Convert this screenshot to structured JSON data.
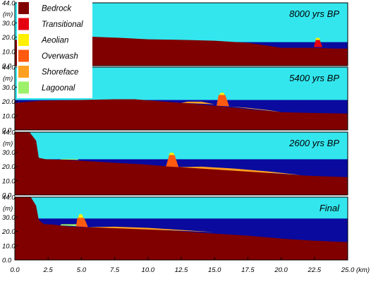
{
  "chart_data": {
    "type": "area",
    "colors": {
      "sky": "#33E6EE",
      "sea": "#0A0A9E",
      "Bedrock": "#800000",
      "Transitional": "#E40010",
      "Aeolian": "#FFF000",
      "Overwash": "#FF5A10",
      "Shoreface": "#FFA020",
      "Lagoonal": "#9CF06A"
    },
    "legend": {
      "position": "top-left",
      "items": [
        "Bedrock",
        "Transitional",
        "Aeolian",
        "Overwash",
        "Shoreface",
        "Lagoonal"
      ]
    },
    "x_axis": {
      "unit": "(km)",
      "range": [
        0,
        25
      ],
      "ticks": [
        "0.0",
        "2.5",
        "5.0",
        "7.5",
        "10.0",
        "12.5",
        "15.0",
        "17.5",
        "20.0",
        "22.5",
        "25.0"
      ]
    },
    "y_axis": {
      "unit": "(m)",
      "range": [
        0,
        44
      ],
      "ticks": [
        "0.0",
        "10.0",
        "20.0",
        "30.0",
        "44.0"
      ]
    },
    "panels": [
      {
        "label": "8000 yrs BP",
        "sea_level": 16.5,
        "bedrock": [
          [
            0,
            18
          ],
          [
            1.5,
            19.5
          ],
          [
            2,
            21
          ],
          [
            5,
            20.5
          ],
          [
            8,
            19.5
          ],
          [
            10,
            18.5
          ],
          [
            13,
            18
          ],
          [
            15,
            17.5
          ],
          [
            17.5,
            16
          ],
          [
            19,
            14
          ],
          [
            20,
            12.5
          ],
          [
            22.5,
            12.5
          ],
          [
            24,
            12
          ],
          [
            25,
            12
          ]
        ],
        "deposits": [
          {
            "type": "Transitional",
            "profile": [
              [
                22.45,
                13
              ],
              [
                22.6,
                18
              ],
              [
                22.9,
                18
              ],
              [
                23.1,
                13
              ]
            ]
          },
          {
            "type": "Aeolian",
            "profile": [
              [
                22.55,
                18
              ],
              [
                22.65,
                19.5
              ],
              [
                22.85,
                19.5
              ],
              [
                22.95,
                18
              ]
            ]
          }
        ]
      },
      {
        "label": "5400 yrs BP",
        "sea_level": 21,
        "bedrock": [
          [
            0,
            19
          ],
          [
            2,
            20.5
          ],
          [
            5,
            21
          ],
          [
            7.5,
            21.5
          ],
          [
            9,
            21.5
          ],
          [
            11,
            20
          ],
          [
            13.2,
            18.5
          ],
          [
            15.5,
            16.5
          ],
          [
            18,
            14
          ],
          [
            20,
            12.5
          ],
          [
            22,
            12
          ],
          [
            25,
            11.5
          ]
        ],
        "deposits": [
          {
            "type": "Shoreface",
            "profile": [
              [
                12.5,
                19
              ],
              [
                13,
                19.8
              ],
              [
                14,
                19.8
              ],
              [
                15,
                18
              ]
            ]
          },
          {
            "type": "Overwash",
            "profile": [
              [
                15.15,
                17
              ],
              [
                15.3,
                24.5
              ],
              [
                15.8,
                24.5
              ],
              [
                16.1,
                16.5
              ]
            ]
          },
          {
            "type": "Aeolian",
            "profile": [
              [
                15.35,
                24.5
              ],
              [
                15.45,
                26
              ],
              [
                15.7,
                26
              ],
              [
                15.75,
                24.5
              ]
            ]
          },
          {
            "type": "Shoreface",
            "profile": [
              [
                16.1,
                16.5
              ],
              [
                17.5,
                15.5
              ],
              [
                19,
                14
              ],
              [
                20,
                12.5
              ]
            ]
          }
        ]
      },
      {
        "label": "2600 yrs BP",
        "sea_level": 25,
        "bedrock": [
          [
            0,
            44
          ],
          [
            1.1,
            44
          ],
          [
            1.6,
            38
          ],
          [
            1.8,
            26
          ],
          [
            2.3,
            25
          ],
          [
            4,
            24.5
          ],
          [
            7.5,
            22.5
          ],
          [
            9.5,
            21.5
          ],
          [
            11.5,
            20
          ],
          [
            13,
            19.5
          ],
          [
            15,
            18.5
          ],
          [
            17.5,
            17
          ],
          [
            19.5,
            15
          ],
          [
            22,
            13.5
          ],
          [
            25,
            12.5
          ]
        ],
        "deposits": [
          {
            "type": "Lagoonal",
            "profile": [
              [
                3.4,
                24.8
              ],
              [
                3.5,
                25.2
              ],
              [
                4.7,
                25.2
              ],
              [
                4.8,
                24.5
              ]
            ]
          },
          {
            "type": "Overwash",
            "profile": [
              [
                11.35,
                20
              ],
              [
                11.6,
                28
              ],
              [
                12,
                28
              ],
              [
                12.3,
                19.5
              ]
            ]
          },
          {
            "type": "Aeolian",
            "profile": [
              [
                11.55,
                28
              ],
              [
                11.65,
                29.5
              ],
              [
                11.9,
                29.5
              ],
              [
                12,
                28
              ]
            ]
          },
          {
            "type": "Shoreface",
            "profile": [
              [
                12.3,
                19.5
              ],
              [
                14,
                19.8
              ],
              [
                16.5,
                18.5
              ],
              [
                19,
                16.5
              ],
              [
                20,
                15.5
              ],
              [
                21.5,
                14
              ]
            ]
          }
        ]
      },
      {
        "label": "Final",
        "sea_level": 29,
        "bedrock": [
          [
            0,
            44
          ],
          [
            1.2,
            44
          ],
          [
            1.6,
            38
          ],
          [
            1.8,
            28
          ],
          [
            2.2,
            25
          ],
          [
            2.8,
            24.8
          ],
          [
            4,
            23.5
          ],
          [
            5,
            23
          ],
          [
            7.5,
            22.5
          ],
          [
            10,
            21.5
          ],
          [
            12.5,
            20
          ],
          [
            15,
            18.5
          ],
          [
            17.5,
            17
          ],
          [
            20,
            15
          ],
          [
            22.5,
            13.5
          ],
          [
            25,
            12.5
          ]
        ],
        "deposits": [
          {
            "type": "Lagoonal",
            "profile": [
              [
                3.4,
                24.2
              ],
              [
                3.5,
                25
              ],
              [
                4.8,
                25
              ],
              [
                5,
                23.5
              ]
            ]
          },
          {
            "type": "Overwash",
            "profile": [
              [
                4.6,
                23.5
              ],
              [
                4.7,
                29.5
              ],
              [
                5.2,
                29.5
              ],
              [
                5.5,
                23
              ]
            ]
          },
          {
            "type": "Aeolian",
            "profile": [
              [
                4.75,
                29.5
              ],
              [
                4.85,
                32
              ],
              [
                5.05,
                32
              ],
              [
                5.15,
                29.5
              ]
            ]
          },
          {
            "type": "Shoreface",
            "profile": [
              [
                5.5,
                23
              ],
              [
                7.5,
                23.3
              ],
              [
                10,
                22.5
              ],
              [
                12.5,
                21
              ],
              [
                15,
                19.5
              ]
            ]
          }
        ]
      }
    ]
  }
}
